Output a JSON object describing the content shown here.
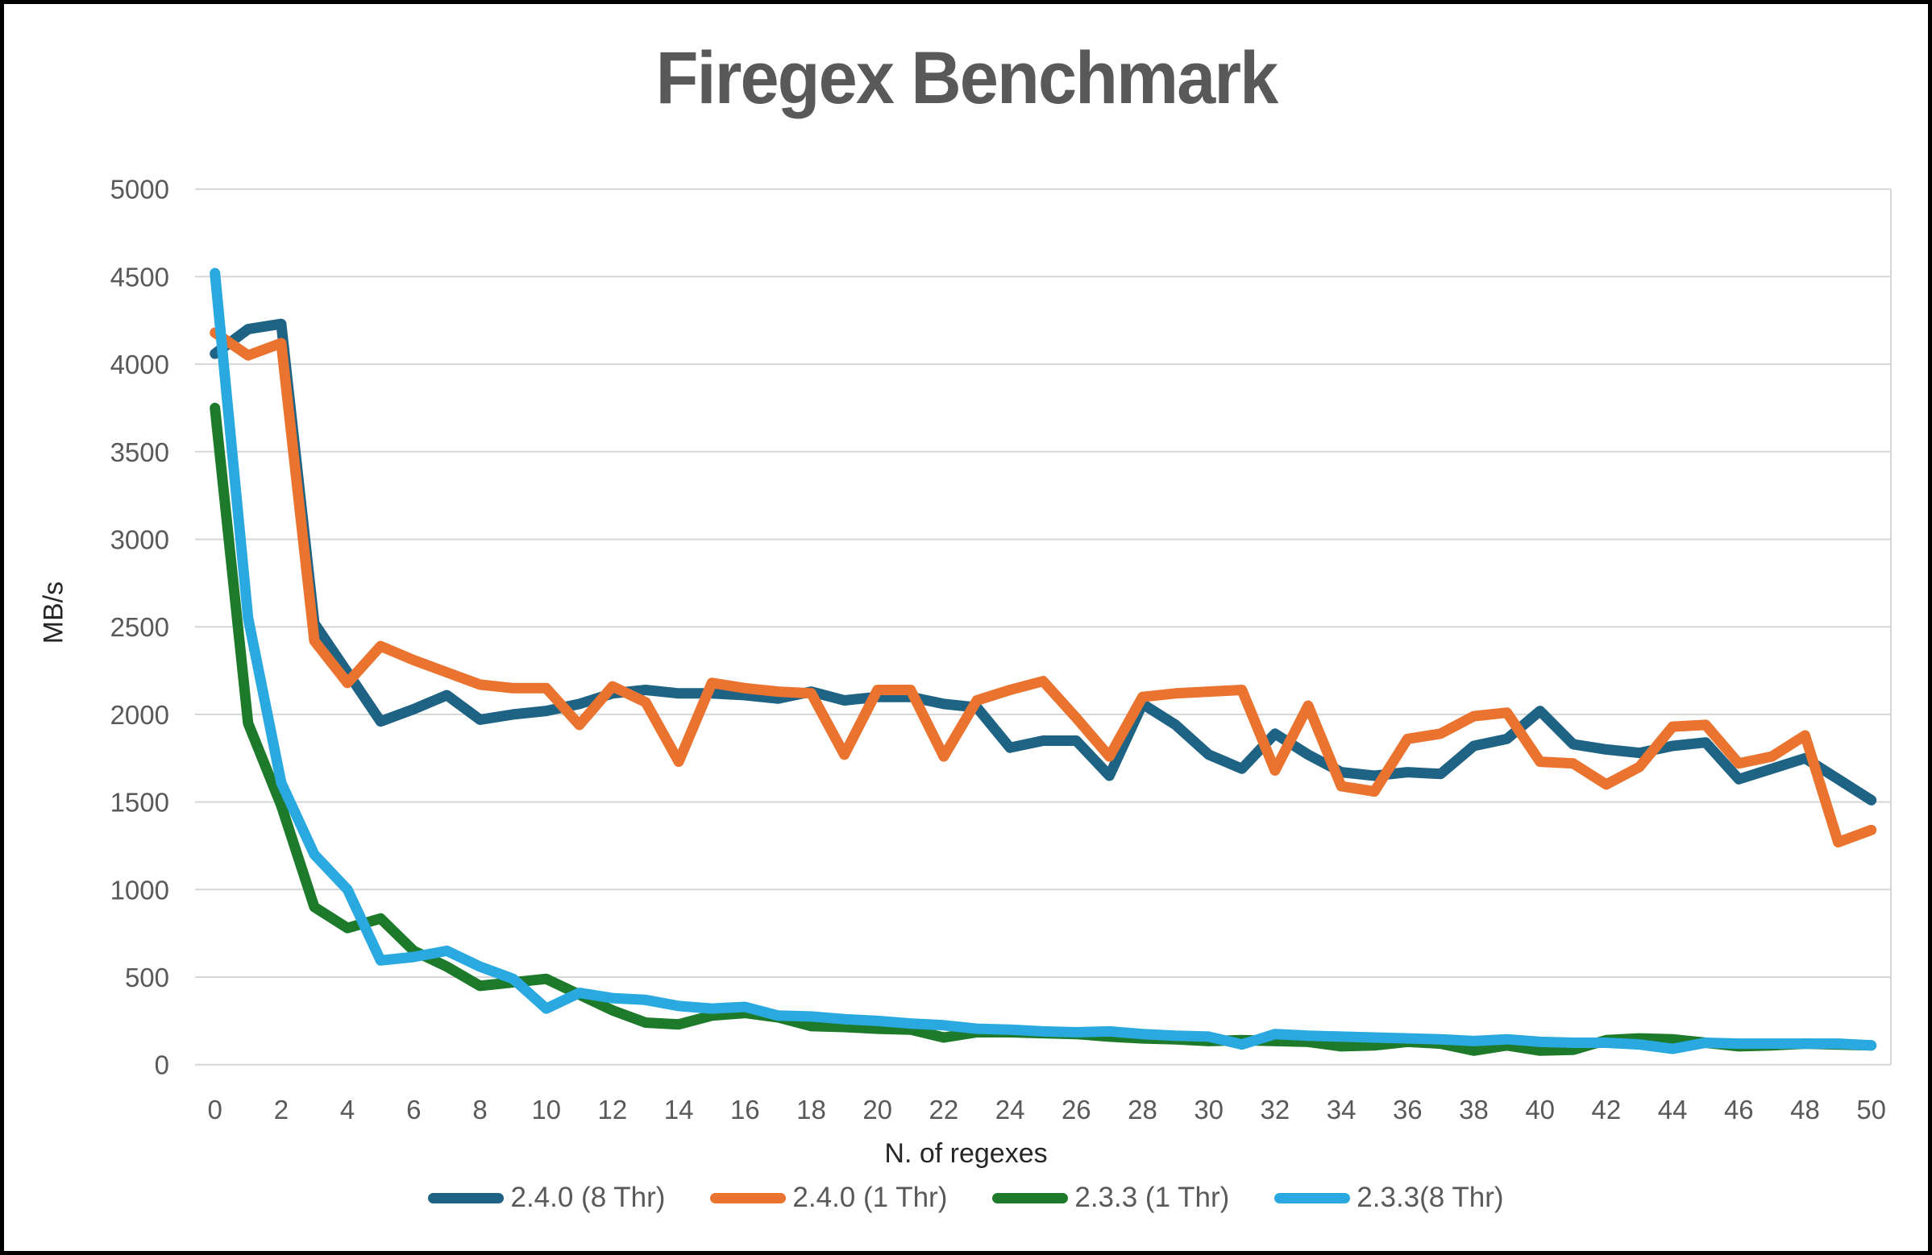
{
  "chart_data": {
    "type": "line",
    "title": "Firegex Benchmark",
    "xlabel": "N. of regexes",
    "ylabel": "MB/s",
    "ylim": [
      0,
      5000
    ],
    "y_ticks": [
      0,
      500,
      1000,
      1500,
      2000,
      2500,
      3000,
      3500,
      4000,
      4500,
      5000
    ],
    "x_ticks": [
      0,
      2,
      4,
      6,
      8,
      10,
      12,
      14,
      16,
      18,
      20,
      22,
      24,
      26,
      28,
      30,
      32,
      34,
      36,
      38,
      40,
      42,
      44,
      46,
      48,
      50
    ],
    "x": [
      0,
      1,
      2,
      3,
      4,
      5,
      6,
      7,
      8,
      9,
      10,
      11,
      12,
      13,
      14,
      15,
      16,
      17,
      18,
      19,
      20,
      21,
      22,
      23,
      24,
      25,
      26,
      27,
      28,
      29,
      30,
      31,
      32,
      33,
      34,
      35,
      36,
      37,
      38,
      39,
      40,
      41,
      42,
      43,
      44,
      45,
      46,
      47,
      48,
      49,
      50
    ],
    "grid": true,
    "legend_position": "bottom",
    "text_color": "#595959",
    "grid_color": "#D6D6D6",
    "series": [
      {
        "name": "2.4.0 (8 Thr)",
        "color": "#1F6384",
        "values": [
          4060,
          4200,
          4230,
          2520,
          2240,
          1960,
          2030,
          2110,
          1970,
          2000,
          2020,
          2060,
          2120,
          2140,
          2120,
          2120,
          2110,
          2090,
          2130,
          2080,
          2100,
          2100,
          2060,
          2040,
          1810,
          1850,
          1850,
          1650,
          2060,
          1940,
          1770,
          1690,
          1890,
          1770,
          1670,
          1650,
          1670,
          1660,
          1820,
          1860,
          2020,
          1830,
          1800,
          1780,
          1820,
          1840,
          1630,
          1690,
          1750,
          1630,
          1510
        ]
      },
      {
        "name": "2.4.0 (1 Thr)",
        "color": "#E9732F",
        "values": [
          4180,
          4050,
          4120,
          2420,
          2180,
          2390,
          2310,
          2240,
          2170,
          2150,
          2150,
          1940,
          2160,
          2070,
          1730,
          2180,
          2150,
          2130,
          2120,
          1770,
          2140,
          2140,
          1760,
          2080,
          2140,
          2190,
          1980,
          1760,
          2100,
          2120,
          2130,
          2140,
          1680,
          2050,
          1590,
          1560,
          1860,
          1890,
          1990,
          2010,
          1730,
          1720,
          1600,
          1700,
          1930,
          1940,
          1720,
          1760,
          1880,
          1270,
          1340
        ]
      },
      {
        "name": "2.3.3 (1 Thr)",
        "color": "#1E7A2B",
        "values": [
          3750,
          1950,
          1480,
          900,
          780,
          835,
          650,
          560,
          450,
          470,
          490,
          400,
          310,
          240,
          230,
          280,
          295,
          270,
          220,
          215,
          205,
          200,
          155,
          185,
          185,
          180,
          175,
          160,
          150,
          145,
          135,
          140,
          135,
          130,
          105,
          110,
          130,
          120,
          80,
          110,
          80,
          85,
          140,
          150,
          145,
          125,
          105,
          110,
          120,
          115,
          110
        ]
      },
      {
        "name": "2.3.3(8 Thr)",
        "color": "#29A9DF",
        "values": [
          4520,
          2550,
          1610,
          1200,
          1000,
          595,
          615,
          650,
          560,
          490,
          320,
          410,
          380,
          370,
          335,
          320,
          330,
          280,
          275,
          260,
          250,
          235,
          225,
          205,
          200,
          190,
          185,
          190,
          175,
          165,
          160,
          115,
          175,
          165,
          160,
          155,
          150,
          145,
          135,
          145,
          130,
          125,
          125,
          115,
          90,
          125,
          120,
          120,
          120,
          120,
          110
        ]
      }
    ]
  }
}
